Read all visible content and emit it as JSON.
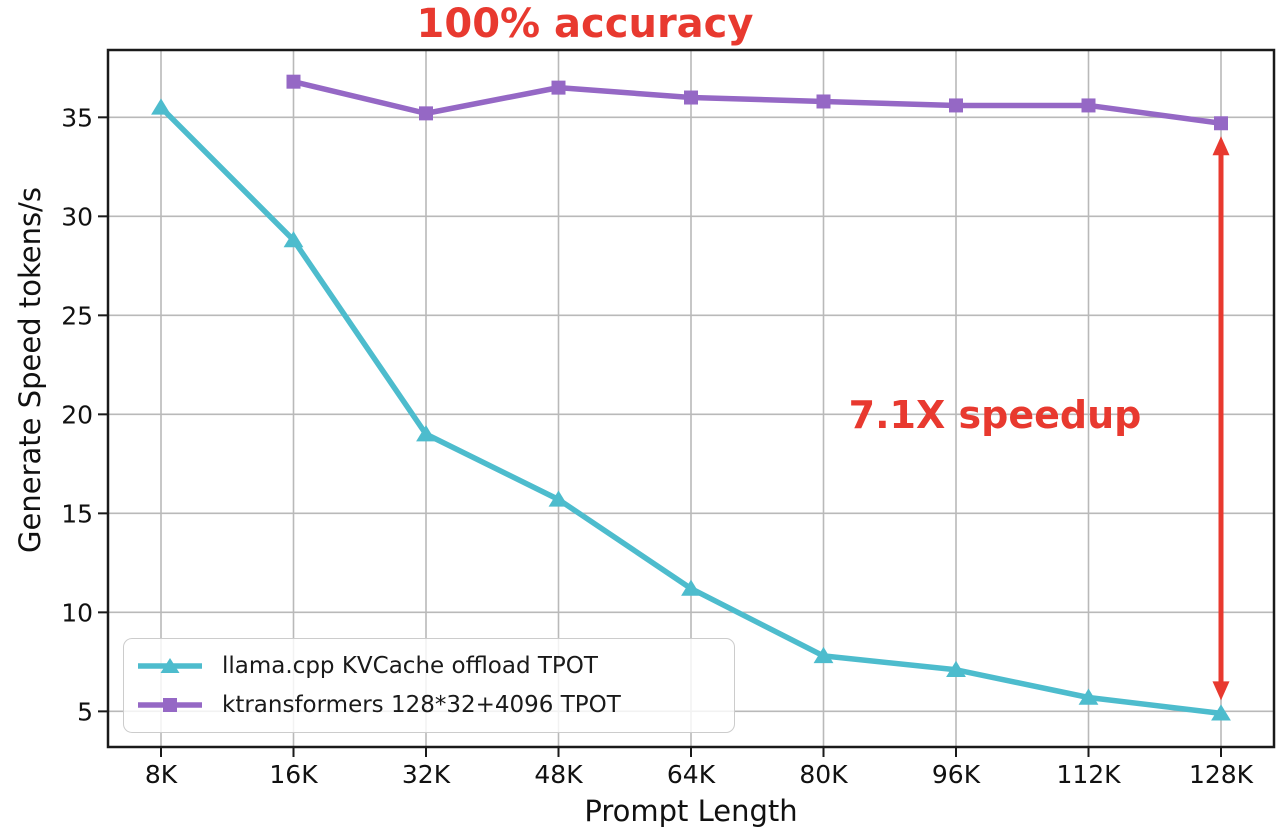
{
  "chart_data": {
    "type": "line",
    "title": "100% accuracy",
    "xlabel": "Prompt Length",
    "ylabel": "Generate Speed tokens/s",
    "categories": [
      "8K",
      "16K",
      "32K",
      "48K",
      "64K",
      "80K",
      "96K",
      "112K",
      "128K"
    ],
    "y_ticks": [
      5,
      10,
      15,
      20,
      25,
      30,
      35
    ],
    "xlim_index": [
      -0.4,
      8.4
    ],
    "ylim": [
      3.2,
      38.4
    ],
    "grid": true,
    "legend_position": "lower-left",
    "series": [
      {
        "name": "llama.cpp KVCache offload TPOT",
        "color": "#4dbccd",
        "marker": "triangle",
        "values": [
          35.5,
          28.8,
          19.0,
          15.7,
          11.2,
          7.8,
          7.1,
          5.7,
          4.9
        ]
      },
      {
        "name": "ktransformers 128*32+4096 TPOT",
        "color": "#9568c5",
        "marker": "square",
        "values": [
          null,
          36.8,
          35.2,
          36.5,
          36.0,
          35.8,
          35.6,
          35.6,
          34.7
        ]
      }
    ],
    "annotations": [
      {
        "text": "100% accuracy",
        "color": "#e8392f",
        "role": "title"
      },
      {
        "text": "7.1X speedup",
        "color": "#e8392f",
        "role": "speedup-label"
      }
    ],
    "arrow": {
      "category": "128K",
      "from_value": 34.7,
      "to_value": 4.9,
      "color": "#e8392f",
      "style": "double-headed"
    },
    "colors": {
      "grid": "#b9b9b9",
      "spine": "#1a1a1a",
      "tick_label": "#111111"
    }
  }
}
